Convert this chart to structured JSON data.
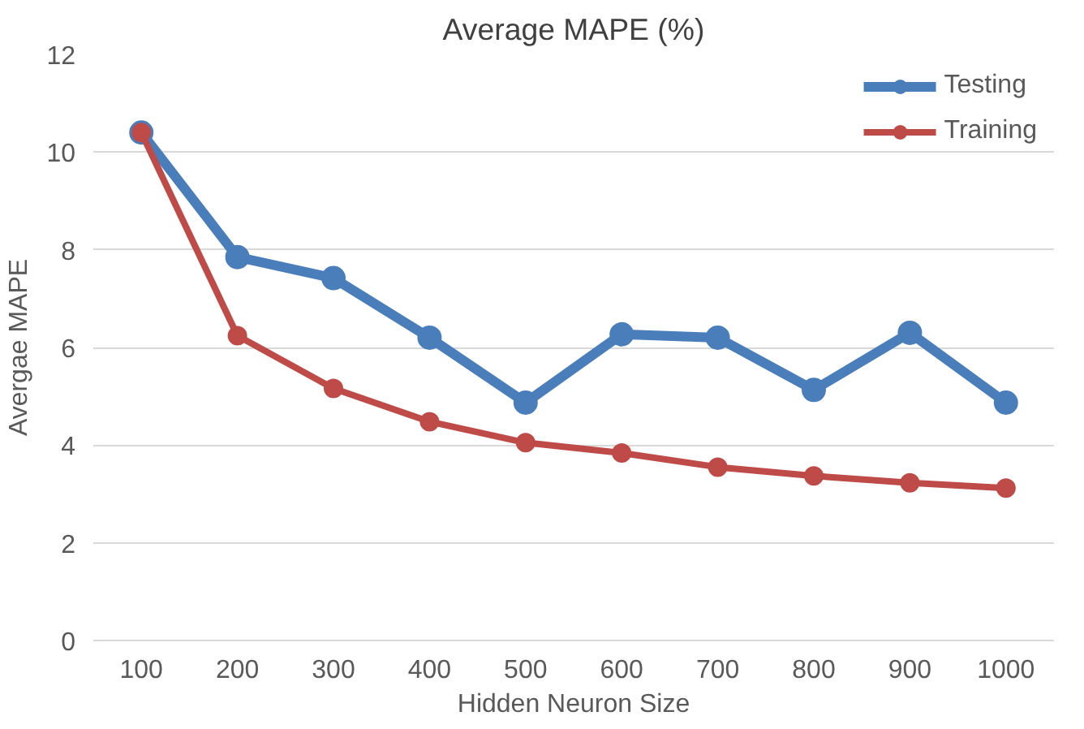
{
  "chart_data": {
    "type": "line",
    "title": "Average MAPE (%)",
    "xlabel": "Hidden Neuron Size",
    "ylabel": "Avergae MAPE",
    "categories": [
      "100",
      "200",
      "300",
      "400",
      "500",
      "600",
      "700",
      "800",
      "900",
      "1000"
    ],
    "series": [
      {
        "name": "Testing",
        "color": "#4a7ebb",
        "values": [
          10.4,
          7.85,
          7.42,
          6.2,
          4.87,
          6.27,
          6.2,
          5.13,
          6.3,
          4.87
        ]
      },
      {
        "name": "Training",
        "color": "#be4b48",
        "values": [
          10.4,
          6.24,
          5.16,
          4.48,
          4.05,
          3.84,
          3.55,
          3.37,
          3.23,
          3.12
        ]
      }
    ],
    "ylim": [
      0,
      12
    ],
    "yticks": [
      0,
      2,
      4,
      6,
      8,
      10,
      12
    ],
    "grid": "y",
    "legend": "top right",
    "marker": "circle",
    "line_style": "solid"
  }
}
